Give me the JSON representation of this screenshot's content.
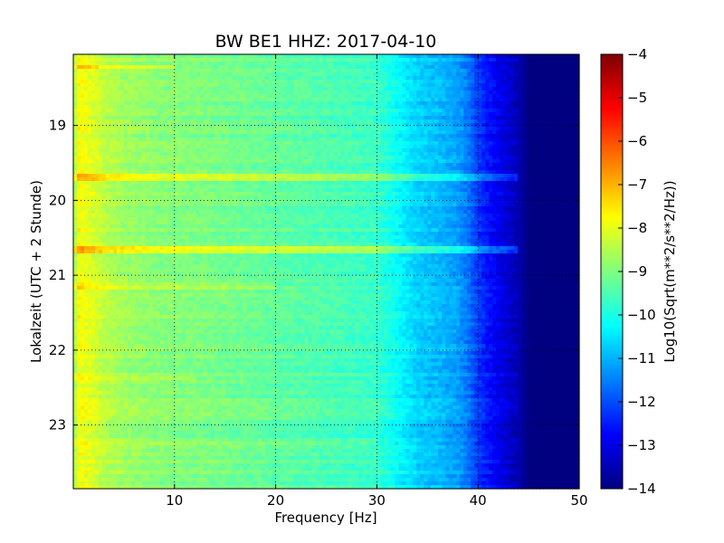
{
  "chart_data": {
    "type": "heatmap",
    "title": "BW BE1 HHZ: 2017-04-10",
    "xlabel": "Frequency [Hz]",
    "ylabel": "Lokalzeit (UTC + 2 Stunde)",
    "xlim": [
      0,
      50
    ],
    "ylim": [
      18.05,
      23.85
    ],
    "y_inverted": true,
    "x_ticks": [
      10,
      20,
      30,
      40,
      50
    ],
    "y_ticks": [
      19,
      20,
      21,
      22,
      23
    ],
    "grid": true,
    "colormap": "jet",
    "colorbar": {
      "label": "Log10(Sqrt(m**2/s**2/Hz))",
      "range": [
        -14,
        -4
      ],
      "ticks": [
        -4,
        -5,
        -6,
        -7,
        -8,
        -9,
        -10,
        -11,
        -12,
        -13,
        -14
      ]
    },
    "spectral_profile": {
      "frequency_hz": [
        0,
        0.5,
        1.5,
        3,
        5,
        8,
        12,
        15,
        20,
        25,
        30,
        32,
        34,
        36,
        38,
        39,
        40,
        41,
        42,
        43,
        44,
        45,
        50
      ],
      "log10_amplitude": [
        -8.8,
        -7.8,
        -8.0,
        -8.4,
        -8.7,
        -8.9,
        -9.0,
        -9.1,
        -9.3,
        -9.5,
        -9.7,
        -10.2,
        -10.7,
        -10.9,
        -11.2,
        -11.6,
        -12.2,
        -12.6,
        -12.9,
        -13.2,
        -13.5,
        -14.0,
        -14.0
      ]
    },
    "bright_bands": [
      {
        "time": 18.23,
        "fmax": 10,
        "boost": 0.8
      },
      {
        "time": 19.7,
        "fmax": 44,
        "boost": 1.0
      },
      {
        "time": 20.65,
        "fmax": 44,
        "boost": 1.0
      },
      {
        "time": 21.15,
        "fmax": 20,
        "boost": 0.4
      },
      {
        "time": 22.38,
        "fmax": 12,
        "boost": 0.4
      },
      {
        "time": 23.25,
        "fmax": 30,
        "boost": 0.35
      }
    ]
  }
}
